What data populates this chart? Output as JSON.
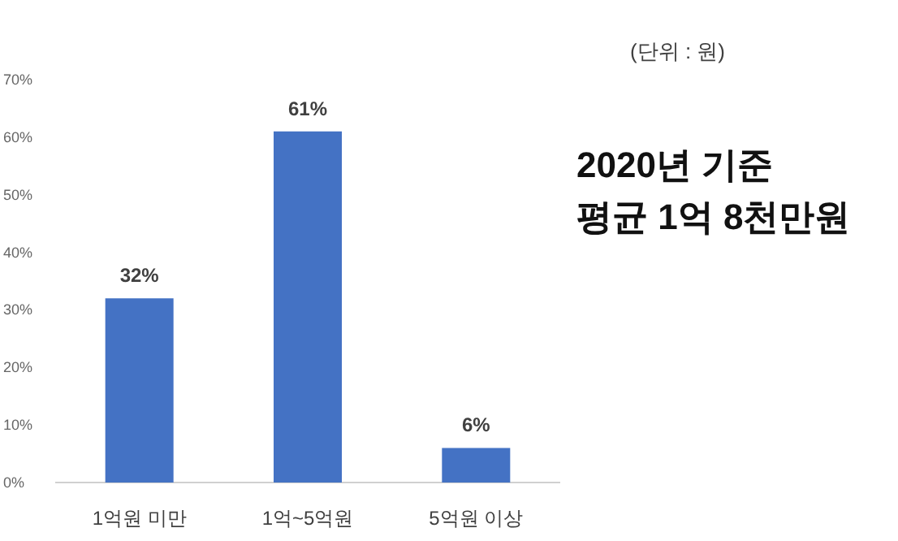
{
  "chart_data": {
    "type": "bar",
    "categories": [
      "1억원 미만",
      "1억~5억원",
      "5억원 이상"
    ],
    "values": [
      32,
      61,
      6
    ],
    "color": "#4472c4",
    "value_labels": [
      "32%",
      "61%",
      "6%"
    ],
    "ylim": [
      0,
      70
    ],
    "yticks": [
      {
        "value": 0,
        "label": "0%"
      },
      {
        "value": 10,
        "label": "10%"
      },
      {
        "value": 20,
        "label": "20%"
      },
      {
        "value": 30,
        "label": "30%"
      },
      {
        "value": 40,
        "label": "40%"
      },
      {
        "value": 50,
        "label": "50%"
      },
      {
        "value": 60,
        "label": "60%"
      },
      {
        "value": 70,
        "label": "70%"
      }
    ],
    "annotations": [
      "(단위 : 원)",
      "2020년 기준",
      "평균 1억 8천만원"
    ]
  }
}
